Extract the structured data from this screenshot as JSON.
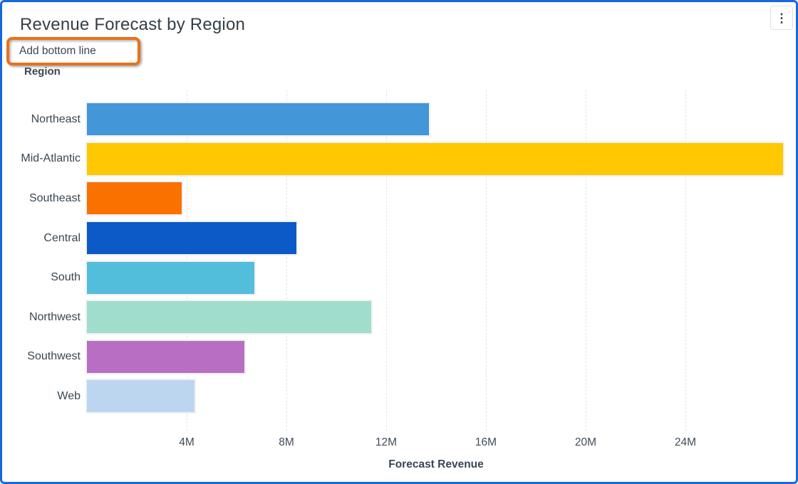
{
  "header": {
    "title": "Revenue Forecast by Region"
  },
  "menu": {
    "kebab_icon": "⋮"
  },
  "annotation": {
    "label": "Add bottom line",
    "box_color": "#E8711A"
  },
  "panel": {
    "border_color": "#1668E2"
  },
  "chart_data": {
    "type": "bar",
    "orientation": "horizontal",
    "title": "Revenue Forecast by Region",
    "group_label": "Region",
    "xlabel": "Forecast Revenue",
    "unit": "M",
    "categories": [
      "Northeast",
      "Mid-Atlantic",
      "Southeast",
      "Central",
      "South",
      "Northwest",
      "Southwest",
      "Web"
    ],
    "values": [
      13.7,
      27.9,
      3.8,
      8.4,
      6.7,
      11.4,
      6.3,
      4.3
    ],
    "colors": [
      "#4396D7",
      "#FFC800",
      "#FB7100",
      "#0B5AC8",
      "#53BDDC",
      "#A0DDCC",
      "#B86FC3",
      "#BCD6F0"
    ],
    "tick_values": [
      4,
      8,
      12,
      16,
      20,
      24
    ],
    "tick_labels": [
      "4M",
      "8M",
      "12M",
      "16M",
      "20M",
      "24M"
    ],
    "xlim": [
      0,
      28
    ],
    "grid": "vertical-dashed",
    "legend": "none"
  }
}
